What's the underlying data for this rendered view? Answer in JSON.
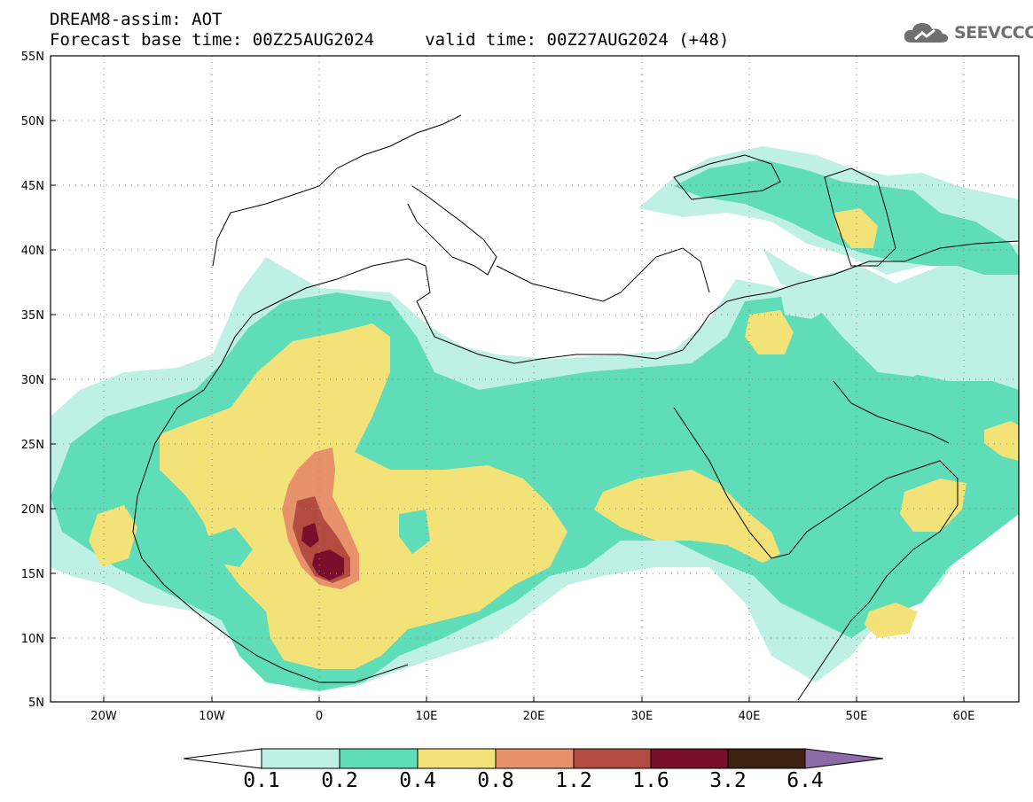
{
  "header": {
    "title_line1": "DREAM8-assim: AOT",
    "title_line2": "Forecast base time: 00Z25AUG2024     valid time: 00Z27AUG2024 (+48)"
  },
  "logo": {
    "icon": "cloud-icon",
    "text": "SEEVCCC",
    "color": "#6f6f6f"
  },
  "map": {
    "variable": "AOT",
    "lon_range": [
      -25,
      65
    ],
    "lat_range": [
      5,
      55
    ],
    "lat_ticks": [
      "55N",
      "50N",
      "45N",
      "40N",
      "35N",
      "30N",
      "25N",
      "20N",
      "15N",
      "10N",
      "5N"
    ],
    "lon_ticks": [
      "20W",
      "10W",
      "0",
      "10E",
      "20E",
      "30E",
      "40E",
      "50E",
      "60E"
    ],
    "gridlines": "dotted"
  },
  "colorbar": {
    "levels": [
      "0.1",
      "0.2",
      "0.4",
      "0.8",
      "1.2",
      "1.6",
      "3.2",
      "6.4"
    ],
    "colors": [
      "#ffffff",
      "#bff0e6",
      "#5fdcb8",
      "#f2e278",
      "#e8926c",
      "#b24c40",
      "#7a0f2c",
      "#3d2212",
      "#8e6aa8"
    ]
  }
}
